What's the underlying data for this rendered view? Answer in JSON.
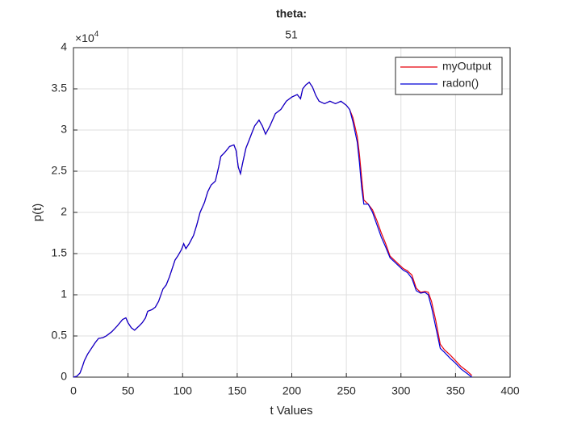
{
  "chart_data": {
    "type": "line",
    "title": "theta:",
    "subtitle": "51",
    "xlabel": "t Values",
    "ylabel": "p(t)",
    "y_exponent": {
      "base": "×10",
      "power": "4"
    },
    "xlim": [
      0,
      400
    ],
    "xticks": [
      0,
      50,
      100,
      150,
      200,
      250,
      300,
      350,
      400
    ],
    "ylim": [
      0,
      4
    ],
    "yticks": [
      0,
      0.5,
      1,
      1.5,
      2,
      2.5,
      3,
      3.5,
      4
    ],
    "grid": true,
    "legend": "top-right",
    "x": [
      0,
      3,
      6,
      8,
      10,
      13,
      16,
      20,
      23,
      27,
      30,
      35,
      40,
      45,
      48,
      50,
      53,
      56,
      60,
      63,
      66,
      68,
      72,
      75,
      78,
      82,
      85,
      88,
      90,
      93,
      96,
      99,
      101,
      103,
      106,
      110,
      113,
      116,
      120,
      123,
      126,
      130,
      133,
      135,
      138,
      140,
      143,
      147,
      149,
      151,
      153,
      155,
      158,
      161,
      163,
      166,
      170,
      173,
      176,
      180,
      185,
      190,
      195,
      200,
      205,
      208,
      210,
      213,
      216,
      219,
      222,
      225,
      230,
      235,
      240,
      245,
      250,
      253,
      256,
      260,
      262,
      264,
      266,
      270,
      274,
      278,
      282,
      286,
      290,
      294,
      298,
      302,
      306,
      310,
      314,
      318,
      322,
      325,
      328,
      332,
      336,
      340,
      345,
      350,
      355,
      360,
      365
    ],
    "series": [
      {
        "name": "myOutput",
        "color": "#e8000b",
        "values": [
          0,
          0.01,
          0.05,
          0.12,
          0.2,
          0.28,
          0.34,
          0.42,
          0.47,
          0.48,
          0.5,
          0.55,
          0.62,
          0.7,
          0.72,
          0.66,
          0.6,
          0.57,
          0.62,
          0.66,
          0.72,
          0.8,
          0.82,
          0.85,
          0.92,
          1.07,
          1.12,
          1.22,
          1.3,
          1.42,
          1.48,
          1.55,
          1.62,
          1.56,
          1.62,
          1.72,
          1.85,
          2.0,
          2.12,
          2.25,
          2.33,
          2.38,
          2.55,
          2.68,
          2.72,
          2.75,
          2.8,
          2.82,
          2.75,
          2.55,
          2.47,
          2.6,
          2.78,
          2.88,
          2.95,
          3.05,
          3.12,
          3.05,
          2.95,
          3.05,
          3.2,
          3.25,
          3.35,
          3.4,
          3.43,
          3.38,
          3.5,
          3.55,
          3.58,
          3.52,
          3.42,
          3.35,
          3.32,
          3.35,
          3.32,
          3.35,
          3.3,
          3.25,
          3.15,
          2.92,
          2.7,
          2.42,
          2.15,
          2.1,
          2.03,
          1.9,
          1.75,
          1.62,
          1.47,
          1.42,
          1.37,
          1.32,
          1.29,
          1.24,
          1.08,
          1.03,
          1.04,
          1.03,
          0.92,
          0.68,
          0.4,
          0.33,
          0.27,
          0.2,
          0.13,
          0.08,
          0.02
        ]
      },
      {
        "name": "radon()",
        "color": "#0000d8",
        "values": [
          0,
          0.01,
          0.05,
          0.12,
          0.2,
          0.28,
          0.34,
          0.42,
          0.47,
          0.48,
          0.5,
          0.55,
          0.62,
          0.7,
          0.72,
          0.66,
          0.6,
          0.57,
          0.62,
          0.66,
          0.72,
          0.8,
          0.82,
          0.85,
          0.92,
          1.07,
          1.12,
          1.22,
          1.3,
          1.42,
          1.48,
          1.55,
          1.62,
          1.56,
          1.62,
          1.72,
          1.85,
          2.0,
          2.12,
          2.25,
          2.33,
          2.38,
          2.55,
          2.68,
          2.72,
          2.75,
          2.8,
          2.82,
          2.75,
          2.55,
          2.47,
          2.6,
          2.78,
          2.88,
          2.95,
          3.05,
          3.12,
          3.05,
          2.95,
          3.05,
          3.2,
          3.25,
          3.35,
          3.4,
          3.43,
          3.38,
          3.5,
          3.55,
          3.58,
          3.52,
          3.42,
          3.35,
          3.32,
          3.35,
          3.32,
          3.35,
          3.3,
          3.25,
          3.1,
          2.85,
          2.6,
          2.3,
          2.1,
          2.1,
          2.0,
          1.85,
          1.7,
          1.58,
          1.45,
          1.4,
          1.35,
          1.3,
          1.27,
          1.2,
          1.05,
          1.02,
          1.03,
          1.0,
          0.85,
          0.6,
          0.35,
          0.3,
          0.23,
          0.17,
          0.1,
          0.05,
          0
        ]
      }
    ]
  }
}
